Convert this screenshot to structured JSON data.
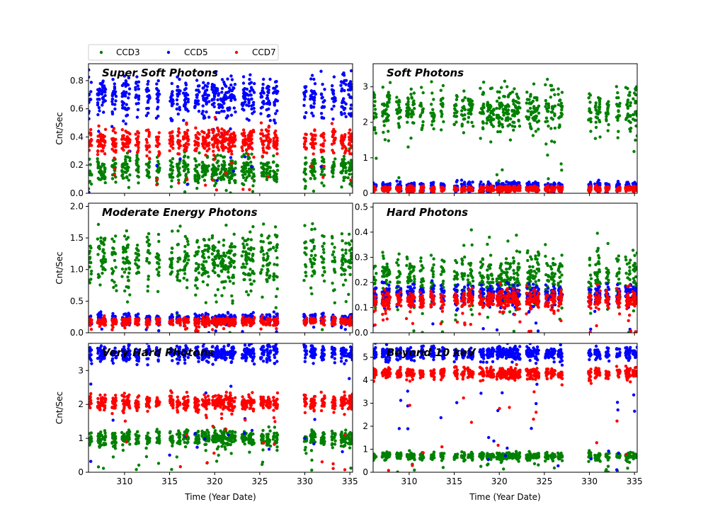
{
  "chart_data": {
    "type": "scatter",
    "xlabel": "Time (Year Date)",
    "ylabel": "Cnt/Sec",
    "xlim": [
      306,
      335.3
    ],
    "xticks": [
      310,
      315,
      320,
      325,
      330,
      335
    ],
    "legend": {
      "placement": "top-left",
      "entries": [
        {
          "name": "CCD3",
          "color": "#008000"
        },
        {
          "name": "CCD5",
          "color": "#0000ff"
        },
        {
          "name": "CCD7",
          "color": "#ff0000"
        }
      ]
    },
    "observation_windows": [
      [
        306.0,
        306.35
      ],
      [
        307.0,
        307.9
      ],
      [
        308.6,
        309.1
      ],
      [
        309.7,
        310.6
      ],
      [
        311.2,
        311.6
      ],
      [
        312.4,
        312.8
      ],
      [
        313.5,
        313.9
      ],
      [
        315.0,
        315.4
      ],
      [
        315.8,
        316.2
      ],
      [
        316.5,
        317.1
      ],
      [
        317.8,
        318.3
      ],
      [
        318.6,
        319.4
      ],
      [
        319.7,
        320.5
      ],
      [
        320.6,
        321.3
      ],
      [
        321.4,
        322.3
      ],
      [
        323.0,
        323.6
      ],
      [
        323.7,
        324.4
      ],
      [
        325.1,
        325.5
      ],
      [
        325.7,
        326.2
      ],
      [
        326.5,
        327.0
      ],
      [
        329.9,
        330.2
      ],
      [
        330.6,
        331.2
      ],
      [
        331.8,
        332.2
      ],
      [
        333.0,
        333.4
      ],
      [
        334.0,
        334.6
      ],
      [
        334.8,
        335.3
      ]
    ],
    "panels": [
      {
        "title": "Super Soft Photons",
        "ylim": [
          0,
          0.92
        ],
        "yticks": [
          0.0,
          0.2,
          0.4,
          0.6,
          0.8
        ],
        "series": [
          {
            "name": "CCD3",
            "level": 0.17,
            "spread": 0.05
          },
          {
            "name": "CCD5",
            "level": 0.68,
            "spread": 0.08
          },
          {
            "name": "CCD7",
            "level": 0.37,
            "spread": 0.045
          }
        ]
      },
      {
        "title": "Soft Photons",
        "ylim": [
          0,
          3.65
        ],
        "yticks": [
          0,
          1,
          2,
          3
        ],
        "series": [
          {
            "name": "CCD3",
            "level": 2.35,
            "spread": 0.3
          },
          {
            "name": "CCD5",
            "level": 0.2,
            "spread": 0.06
          },
          {
            "name": "CCD7",
            "level": 0.12,
            "spread": 0.04
          }
        ]
      },
      {
        "title": "Moderate Energy Photons",
        "ylim": [
          0,
          2.05
        ],
        "yticks": [
          0.0,
          0.5,
          1.0,
          1.5,
          2.0
        ],
        "series": [
          {
            "name": "CCD3",
            "level": 1.15,
            "spread": 0.22
          },
          {
            "name": "CCD5",
            "level": 0.22,
            "spread": 0.04
          },
          {
            "name": "CCD7",
            "level": 0.18,
            "spread": 0.03
          }
        ]
      },
      {
        "title": "Hard Photons",
        "ylim": [
          0,
          0.515
        ],
        "yticks": [
          0.0,
          0.1,
          0.2,
          0.3,
          0.4,
          0.5
        ],
        "series": [
          {
            "name": "CCD3",
            "level": 0.22,
            "spread": 0.05
          },
          {
            "name": "CCD5",
            "level": 0.15,
            "spread": 0.02
          },
          {
            "name": "CCD7",
            "level": 0.13,
            "spread": 0.02
          }
        ]
      },
      {
        "title": "Very Hard Photons",
        "ylim": [
          0,
          3.8
        ],
        "yticks": [
          0,
          1,
          2,
          3
        ],
        "series": [
          {
            "name": "CCD3",
            "level": 1.0,
            "spread": 0.12
          },
          {
            "name": "CCD5",
            "level": 3.5,
            "spread": 0.12
          },
          {
            "name": "CCD7",
            "level": 2.05,
            "spread": 0.12
          }
        ]
      },
      {
        "title": "Beyond 10 keV",
        "ylim": [
          0,
          5.6
        ],
        "yticks": [
          0,
          1,
          2,
          3,
          4,
          5
        ],
        "series": [
          {
            "name": "CCD3",
            "level": 0.7,
            "spread": 0.08
          },
          {
            "name": "CCD5",
            "level": 5.15,
            "spread": 0.15
          },
          {
            "name": "CCD7",
            "level": 4.3,
            "spread": 0.12
          }
        ]
      }
    ]
  }
}
